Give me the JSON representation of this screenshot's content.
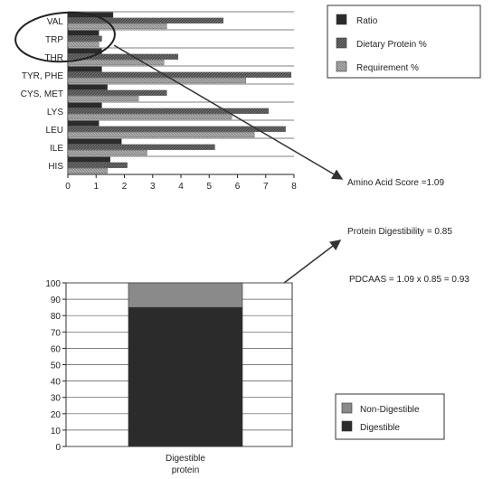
{
  "chart_data": [
    {
      "type": "bar",
      "orientation": "horizontal",
      "categories": [
        "VAL",
        "TRP",
        "THR",
        "TYR, PHE",
        "CYS, MET",
        "LYS",
        "LEU",
        "ILE",
        "HIS"
      ],
      "series": [
        {
          "name": "Ratio",
          "values": [
            1.6,
            1.1,
            1.2,
            1.2,
            1.4,
            1.2,
            1.1,
            1.9,
            1.5
          ]
        },
        {
          "name": "Dietary Protein %",
          "values": [
            5.5,
            1.2,
            3.9,
            7.9,
            3.5,
            7.1,
            7.7,
            5.2,
            2.1
          ]
        },
        {
          "name": "Requirement %",
          "values": [
            3.5,
            1.1,
            3.4,
            6.3,
            2.5,
            5.8,
            6.6,
            2.8,
            1.4
          ]
        }
      ],
      "xlim": [
        0,
        8
      ],
      "xticks": [
        "0",
        "1",
        "2",
        "3",
        "4",
        "5",
        "6",
        "7",
        "8"
      ],
      "grid": true,
      "legend": "top-right",
      "colors": {
        "Ratio": "#2b2b2b",
        "Dietary Protein %": "#7a7a7a",
        "Requirement %": "#a8a8a8"
      }
    },
    {
      "type": "bar",
      "stacked": true,
      "categories": [
        "Digestible\nprotein"
      ],
      "category_lines": [
        "Digestible",
        "protein"
      ],
      "series": [
        {
          "name": "Digestible",
          "values": [
            85
          ]
        },
        {
          "name": "Non-Digestible",
          "values": [
            15
          ]
        }
      ],
      "ylim": [
        0,
        100
      ],
      "yticks": [
        "0",
        "10",
        "20",
        "30",
        "40",
        "50",
        "60",
        "70",
        "80",
        "90",
        "100"
      ],
      "grid": true,
      "legend": "bottom-right",
      "colors": {
        "Digestible": "#2b2b2b",
        "Non-Digestible": "#8a8a8a"
      }
    }
  ],
  "annotations": {
    "amino_acid_score": "Amino Acid Score =1.09",
    "protein_digestibility": "Protein Digestibility = 0.85",
    "pdcaas": "PDCAAS = 1.09 x 0.85 = 0.93"
  }
}
